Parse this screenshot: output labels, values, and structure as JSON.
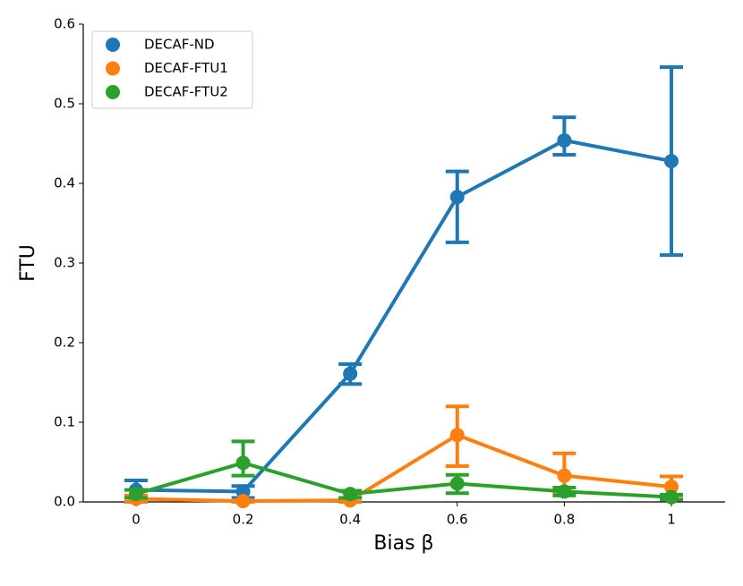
{
  "chart_data": {
    "type": "point",
    "x_label": "Bias β",
    "y_label": "FTU",
    "categories": [
      "0",
      "0.2",
      "0.4",
      "0.6",
      "0.8",
      "1"
    ],
    "ylim": [
      0,
      0.6
    ],
    "yticks": [
      {
        "value": 0,
        "label": "0.0"
      },
      0.1,
      0.2,
      0.3,
      0.4,
      0.5,
      0.6
    ],
    "legend": "upper left",
    "grid": false,
    "series": [
      {
        "name": "DECAF-ND",
        "color": "#1f77b4",
        "values": [
          0.015,
          0.013,
          0.161,
          0.383,
          0.454,
          0.428
        ],
        "ci_low": [
          0.005,
          0.005,
          0.148,
          0.326,
          0.436,
          0.31
        ],
        "ci_high": [
          0.027,
          0.02,
          0.173,
          0.415,
          0.483,
          0.546
        ]
      },
      {
        "name": "DECAF-FTU1",
        "color": "#ff7f0e",
        "values": [
          0.004,
          0.001,
          0.002,
          0.084,
          0.033,
          0.019
        ],
        "ci_low": [
          0.0,
          0.0,
          0.0,
          0.045,
          0.012,
          0.008
        ],
        "ci_high": [
          0.008,
          0.002,
          0.005,
          0.12,
          0.061,
          0.032
        ]
      },
      {
        "name": "DECAF-FTU2",
        "color": "#2ca02c",
        "values": [
          0.01,
          0.049,
          0.01,
          0.023,
          0.013,
          0.006
        ],
        "ci_low": [
          0.005,
          0.033,
          0.005,
          0.011,
          0.008,
          0.003
        ],
        "ci_high": [
          0.015,
          0.076,
          0.014,
          0.034,
          0.018,
          0.009
        ]
      }
    ]
  }
}
